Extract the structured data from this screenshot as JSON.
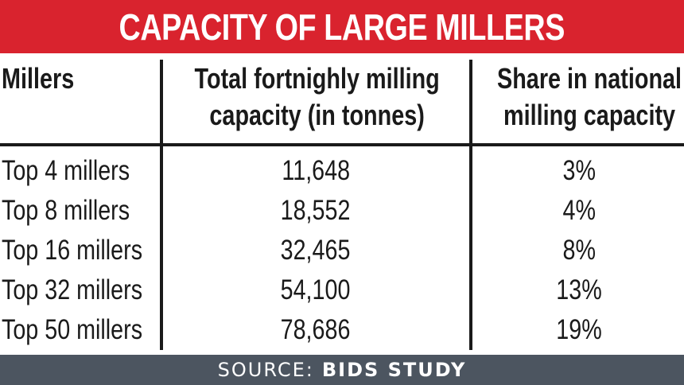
{
  "title": "CAPACITY OF LARGE MILLERS",
  "table": {
    "headers": [
      {
        "lines": [
          "Millers"
        ]
      },
      {
        "lines": [
          "Total fortnighly milling",
          "capacity (in tonnes)"
        ]
      },
      {
        "lines": [
          "Share in national",
          "milling capacity"
        ]
      }
    ],
    "rows": [
      [
        "Top 4 millers",
        "11,648",
        "3%"
      ],
      [
        "Top 8 millers",
        "18,552",
        "4%"
      ],
      [
        "Top 16 millers",
        "32,465",
        "8%"
      ],
      [
        "Top 32 millers",
        "54,100",
        "13%"
      ],
      [
        "Top 50 millers",
        "78,686",
        "19%"
      ]
    ]
  },
  "footer": {
    "prefix": "SOURCE:",
    "source": "BIDS STUDY"
  },
  "colors": {
    "title_bar": "#d9232e",
    "footer_bar": "#4c5560",
    "text": "#1a1a1a"
  }
}
